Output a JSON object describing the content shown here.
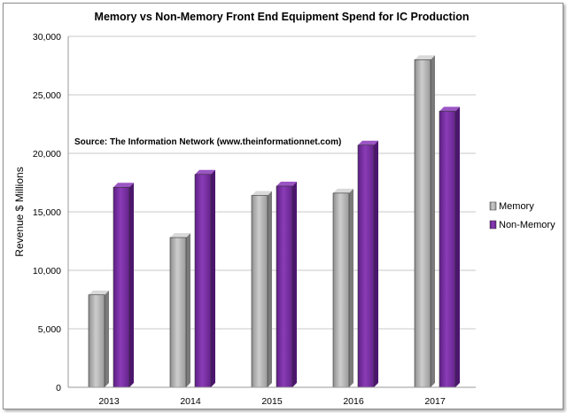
{
  "chart_data": {
    "type": "bar",
    "title": "Memory vs Non-Memory Front End Equipment Spend for IC Production",
    "annotation": "Source: The Information  Network (www.theinformationnet.com)",
    "xlabel": "",
    "ylabel": "Revenue $ Millions",
    "categories": [
      "2013",
      "2014",
      "2015",
      "2016",
      "2017"
    ],
    "series": [
      {
        "name": "Memory",
        "values": [
          7900,
          12800,
          16400,
          16600,
          28000
        ],
        "color": "#b3b3b3"
      },
      {
        "name": "Non-Memory",
        "values": [
          17100,
          18200,
          17200,
          20700,
          23600
        ],
        "color": "#7b2fa6"
      }
    ],
    "ylim": [
      0,
      30000
    ],
    "yticks": [
      "0",
      "5,000",
      "10,000",
      "15,000",
      "20,000",
      "25,000",
      "30,000"
    ],
    "ytick_values": [
      0,
      5000,
      10000,
      15000,
      20000,
      25000,
      30000
    ],
    "grid": true,
    "legend_position": "right"
  }
}
